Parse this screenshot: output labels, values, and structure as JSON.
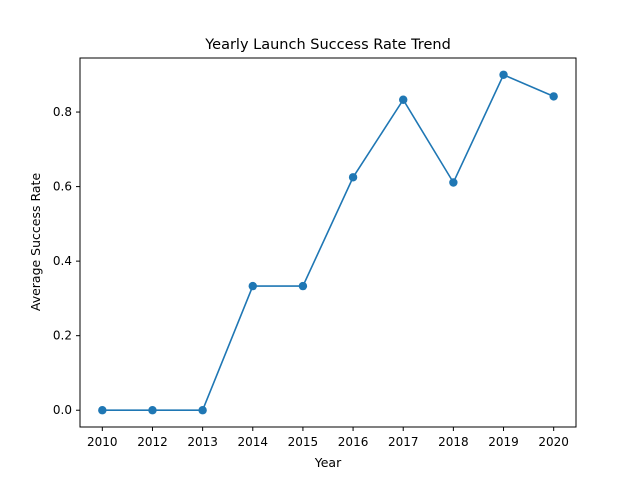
{
  "chart_data": {
    "type": "line",
    "title": "Yearly Launch Success Rate Trend",
    "xlabel": "Year",
    "ylabel": "Average Success Rate",
    "categories": [
      "2010",
      "2012",
      "2013",
      "2014",
      "2015",
      "2016",
      "2017",
      "2018",
      "2019",
      "2020"
    ],
    "series": [
      {
        "values": [
          0.0,
          0.0,
          0.0,
          0.333,
          0.333,
          0.625,
          0.833,
          0.611,
          0.9,
          0.842
        ],
        "color": "#1f77b4",
        "marker": "circle"
      }
    ],
    "yticks": [
      "0.0",
      "0.2",
      "0.4",
      "0.6",
      "0.8"
    ],
    "ylim": [
      -0.045,
      0.945
    ],
    "grid": false
  }
}
